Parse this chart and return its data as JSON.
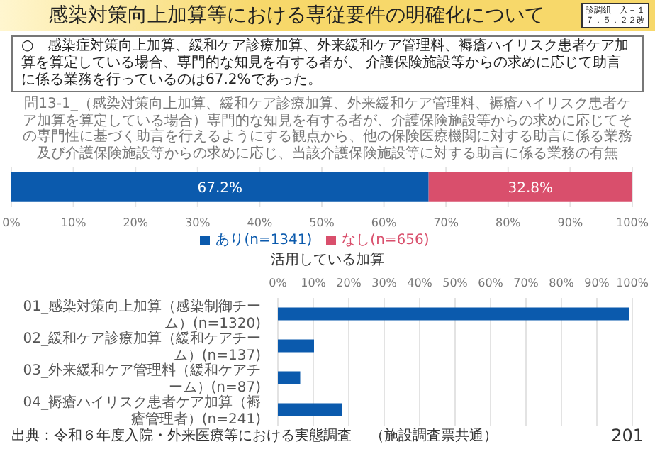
{
  "chart_data": [
    {
      "type": "bar",
      "orientation": "horizontal",
      "stacked": true,
      "title": "感染対策向上加算等における専従要件の明確化について",
      "subtitle": "問13-1_（感染対策向上加算、緩和ケア診療加算、外来緩和ケア管理料、褥瘡ハイリスク患者ケア加算を算定している場合）専門的な知見を有する者が、介護保険施設等からの求めに応じてその専門性に基づく助言を行えるようにする観点から、他の保険医療機関に対する助言に係る業務及び介護保険施設等からの求めに応じ、当該介護保険施設等に対する助言に係る業務の有無",
      "annotations": [
        "診調組　入－１",
        "７．５．２２改",
        "○　感染症対策向上加算、緩和ケア診療加算、外来緩和ケア管理料、褥瘡ハイリスク患者ケア加算を算定している場合、専門的な知見を有する者が、 介護保険施設等からの求めに応じて助言に係る業務を行っているのは67.2%であった。"
      ],
      "categories": [
        null
      ],
      "series": [
        {
          "name": "あり(n=1341)",
          "color": "#0b5aad",
          "values": [
            67.2
          ],
          "value_labels": [
            "67.2%"
          ]
        },
        {
          "name": "なし(n=656)",
          "color": "#d94f6c",
          "values": [
            32.8
          ],
          "value_labels": [
            "32.8%"
          ]
        }
      ],
      "xlim": [
        0,
        100
      ],
      "xticks": [
        {
          "value": 0,
          "label": "0%"
        },
        {
          "value": 10,
          "label": "10%"
        },
        {
          "value": 20,
          "label": "20%"
        },
        {
          "value": 30,
          "label": "30%"
        },
        {
          "value": 40,
          "label": "40%"
        },
        {
          "value": 50,
          "label": "50%"
        },
        {
          "value": 60,
          "label": "60%"
        },
        {
          "value": 70,
          "label": "70%"
        },
        {
          "value": 80,
          "label": "80%"
        },
        {
          "value": 90,
          "label": "90%"
        },
        {
          "value": 100,
          "label": "100%"
        }
      ],
      "grid": "x",
      "legend": "bottom"
    },
    {
      "type": "bar",
      "orientation": "horizontal",
      "title": "活用している加算",
      "annotations": [
        "出典：令和６年度入院・外来医療等における実態調査　 （施設調査票共通）",
        "201"
      ],
      "categories": [
        "01_感染対策向上加算（感染制御チーム）(n=1320)",
        "02_緩和ケア診療加算（緩和ケアチーム）(n=137)",
        "03_外来緩和ケア管理料（緩和ケアチーム）(n=87)",
        "04_褥瘡ハイリスク患者ケア加算（褥瘡管理者）(n=241)"
      ],
      "color": "#0b5aad",
      "values": [
        99.1,
        10.2,
        6.3,
        18.0
      ],
      "xlim": [
        0,
        100
      ],
      "xticks": [
        {
          "value": 0,
          "label": "0%"
        },
        {
          "value": 10,
          "label": "10%"
        },
        {
          "value": 20,
          "label": "20%"
        },
        {
          "value": 30,
          "label": "30%"
        },
        {
          "value": 40,
          "label": "40%"
        },
        {
          "value": 50,
          "label": "50%"
        },
        {
          "value": 60,
          "label": "60%"
        },
        {
          "value": 70,
          "label": "70%"
        },
        {
          "value": 80,
          "label": "80%"
        },
        {
          "value": 90,
          "label": "90%"
        },
        {
          "value": 100,
          "label": "100%"
        }
      ],
      "grid": "x"
    }
  ]
}
